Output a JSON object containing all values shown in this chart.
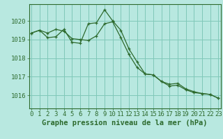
{
  "line1_x": [
    0,
    1,
    2,
    3,
    4,
    5,
    6,
    7,
    8,
    9,
    10,
    11,
    12,
    13,
    14,
    15,
    16,
    17,
    18,
    19,
    20,
    21,
    22,
    23
  ],
  "line1_y": [
    1019.35,
    1019.5,
    1019.1,
    1019.15,
    1019.55,
    1018.85,
    1018.8,
    1019.85,
    1019.9,
    1020.6,
    1020.0,
    1019.5,
    1018.5,
    1017.8,
    1017.15,
    1017.1,
    1016.75,
    1016.6,
    1016.65,
    1016.35,
    1016.2,
    1016.1,
    1016.05,
    1015.85
  ],
  "line2_x": [
    0,
    1,
    2,
    3,
    4,
    5,
    6,
    7,
    8,
    9,
    10,
    11,
    12,
    13,
    14,
    15,
    16,
    17,
    18,
    19,
    20,
    21,
    22,
    23
  ],
  "line2_y": [
    1019.35,
    1019.5,
    1019.35,
    1019.55,
    1019.45,
    1019.05,
    1019.0,
    1018.95,
    1019.2,
    1019.85,
    1019.95,
    1019.1,
    1018.2,
    1017.5,
    1017.15,
    1017.1,
    1016.75,
    1016.5,
    1016.55,
    1016.3,
    1016.15,
    1016.1,
    1016.05,
    1015.85
  ],
  "line_color": "#2d6a2d",
  "bg_color": "#b8e8e0",
  "grid_color": "#80c8b8",
  "xlabel": "Graphe pression niveau de la mer (hPa)",
  "xtick_labels": [
    "0",
    "1",
    "2",
    "3",
    "4",
    "5",
    "6",
    "7",
    "8",
    "9",
    "10",
    "11",
    "12",
    "13",
    "14",
    "15",
    "16",
    "17",
    "18",
    "19",
    "20",
    "21",
    "22",
    "23"
  ],
  "xticks": [
    0,
    1,
    2,
    3,
    4,
    5,
    6,
    7,
    8,
    9,
    10,
    11,
    12,
    13,
    14,
    15,
    16,
    17,
    18,
    19,
    20,
    21,
    22,
    23
  ],
  "yticks": [
    1016,
    1017,
    1018,
    1019,
    1020
  ],
  "ylim": [
    1015.3,
    1020.9
  ],
  "xlim": [
    -0.3,
    23.3
  ],
  "xlabel_fontsize": 7.5,
  "tick_fontsize": 6.5
}
